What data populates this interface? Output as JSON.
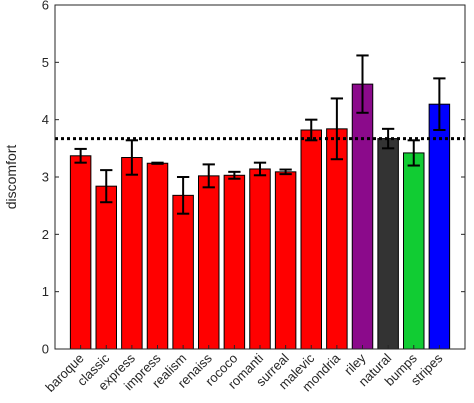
{
  "chart_data": {
    "type": "bar",
    "ylabel": "discomfort",
    "xlabel": "",
    "ylim": [
      0,
      6
    ],
    "yticks": [
      0,
      1,
      2,
      3,
      4,
      5,
      6
    ],
    "grid": false,
    "reference_line": {
      "y": 3.67,
      "style": "dotted",
      "color": "#000000"
    },
    "categories": [
      "baroque",
      "classic",
      "express",
      "impress",
      "realism",
      "renaiss",
      "rococo",
      "romanti",
      "surreal",
      "malevic",
      "mondria",
      "riley",
      "natural",
      "bumps",
      "stripes"
    ],
    "values": [
      3.37,
      2.84,
      3.34,
      3.24,
      2.68,
      3.02,
      3.03,
      3.14,
      3.09,
      3.82,
      3.84,
      4.62,
      3.67,
      3.42,
      4.27
    ],
    "errors": [
      0.12,
      0.28,
      0.3,
      0.01,
      0.32,
      0.2,
      0.06,
      0.11,
      0.04,
      0.18,
      0.53,
      0.5,
      0.17,
      0.22,
      0.45
    ],
    "colors": [
      "#ff0000",
      "#ff0000",
      "#ff0000",
      "#ff0000",
      "#ff0000",
      "#ff0000",
      "#ff0000",
      "#ff0000",
      "#ff0000",
      "#ff0000",
      "#ff0000",
      "#8b0a8b",
      "#333333",
      "#11cc33",
      "#0000ff"
    ]
  }
}
